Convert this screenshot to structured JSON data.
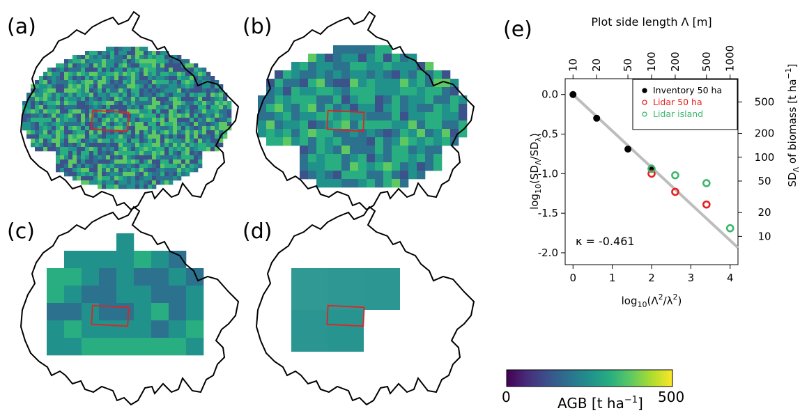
{
  "panels": {
    "a": {
      "label": "(a)"
    },
    "b": {
      "label": "(b)"
    },
    "c": {
      "label": "(c)"
    },
    "d": {
      "label": "(d)"
    },
    "e": {
      "label": "(e)"
    }
  },
  "colorbar": {
    "min_label": "0",
    "max_label": "500",
    "title": "AGB [t ha",
    "title_sup": "−1",
    "title_end": "]",
    "colors": [
      "#440154",
      "#472d7b",
      "#3b528b",
      "#2c728e",
      "#21918c",
      "#28ae80",
      "#5ec962",
      "#addc30",
      "#fde725"
    ]
  },
  "colors": {
    "outline": "#000000",
    "plot_rect": "#e8201f",
    "inventory": "#000000",
    "lidar50": "#e8201f",
    "lidar_island": "#3db66d",
    "fit_line": "#bdbdbd"
  },
  "chart_data": {
    "type": "scatter",
    "xlabel": "log10(Λ²/λ²)",
    "ylabel": "log10(SDΛ/SDλ)",
    "top_axis_label": "Plot side length Λ [m]",
    "right_axis_label": "SDΛ of biomass [t ha−1]",
    "xlim": [
      -0.2,
      4.2
    ],
    "ylim": [
      -2.15,
      0.2
    ],
    "x_ticks": [
      0,
      1,
      2,
      3,
      4
    ],
    "y_ticks": [
      0.0,
      -0.5,
      -1.0,
      -1.5,
      -2.0
    ],
    "y_tick_labels": [
      "0.0",
      "-0.5",
      "-1.0",
      "-1.5",
      "-2.0"
    ],
    "top_ticks": [
      10,
      20,
      50,
      100,
      200,
      500,
      1000
    ],
    "right_ticks": [
      500,
      200,
      100,
      50,
      20,
      10
    ],
    "legend_position": "top-right",
    "annotation": "κ  =  -0.461",
    "fit_line": {
      "slope": -0.461,
      "intercept": 0
    },
    "series": [
      {
        "name": "Inventory 50 ha",
        "marker": "filled-circle",
        "x": [
          0,
          0.602,
          1.398,
          2.0
        ],
        "y": [
          0,
          -0.3,
          -0.69,
          -0.93
        ]
      },
      {
        "name": "Lidar 50 ha",
        "marker": "open-circle",
        "x": [
          2.0,
          2.602,
          3.398
        ],
        "y": [
          -1.0,
          -1.23,
          -1.39
        ]
      },
      {
        "name": "Lidar island",
        "marker": "open-circle",
        "x": [
          2.0,
          2.602,
          3.398,
          4.0
        ],
        "y": [
          -0.94,
          -1.02,
          -1.12,
          -1.69
        ]
      }
    ]
  }
}
